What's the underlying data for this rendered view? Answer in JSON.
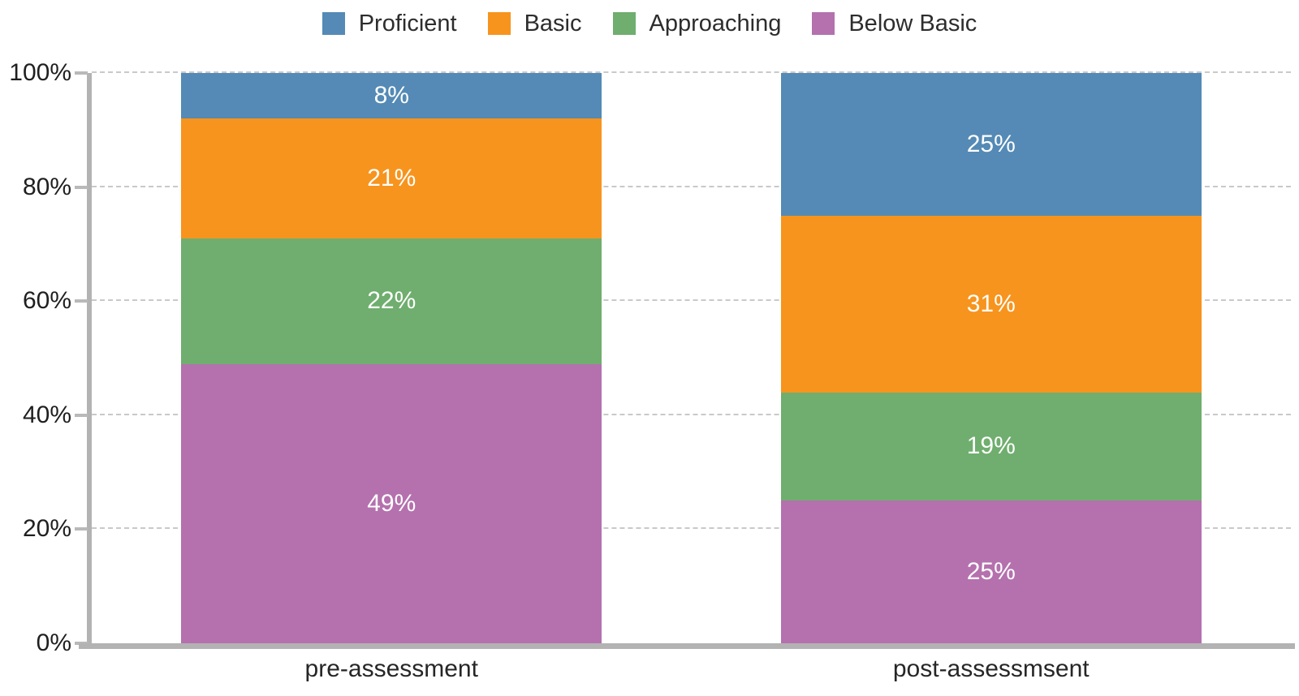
{
  "chart_data": {
    "type": "bar",
    "stacked": true,
    "orientation": "vertical",
    "title": "",
    "xlabel": "",
    "ylabel": "",
    "categories": [
      "pre-assessment",
      "post-assessmsent"
    ],
    "series": [
      {
        "name": "Proficient",
        "color": "#548ab5",
        "values": [
          8,
          25
        ],
        "labels": [
          "8%",
          "25%"
        ]
      },
      {
        "name": "Basic",
        "color": "#f7941e",
        "values": [
          21,
          31
        ],
        "labels": [
          "21%",
          "31%"
        ]
      },
      {
        "name": "Approaching",
        "color": "#6fae6e",
        "values": [
          22,
          19
        ],
        "labels": [
          "22%",
          "19%"
        ]
      },
      {
        "name": "Below Basic",
        "color": "#b471ae",
        "values": [
          49,
          25
        ],
        "labels": [
          "49%",
          "25%"
        ]
      }
    ],
    "ylim": [
      0,
      100
    ],
    "y_ticks": [
      0,
      20,
      40,
      60,
      80,
      100
    ],
    "y_tick_labels": [
      "0%",
      "20%",
      "40%",
      "60%",
      "80%",
      "100%"
    ],
    "grid": "horizontal-dashed",
    "legend_position": "top",
    "data_label_color": "#ffffff",
    "gridline_color": "#c9c9c9",
    "axis_color": "#b3b3b3"
  }
}
